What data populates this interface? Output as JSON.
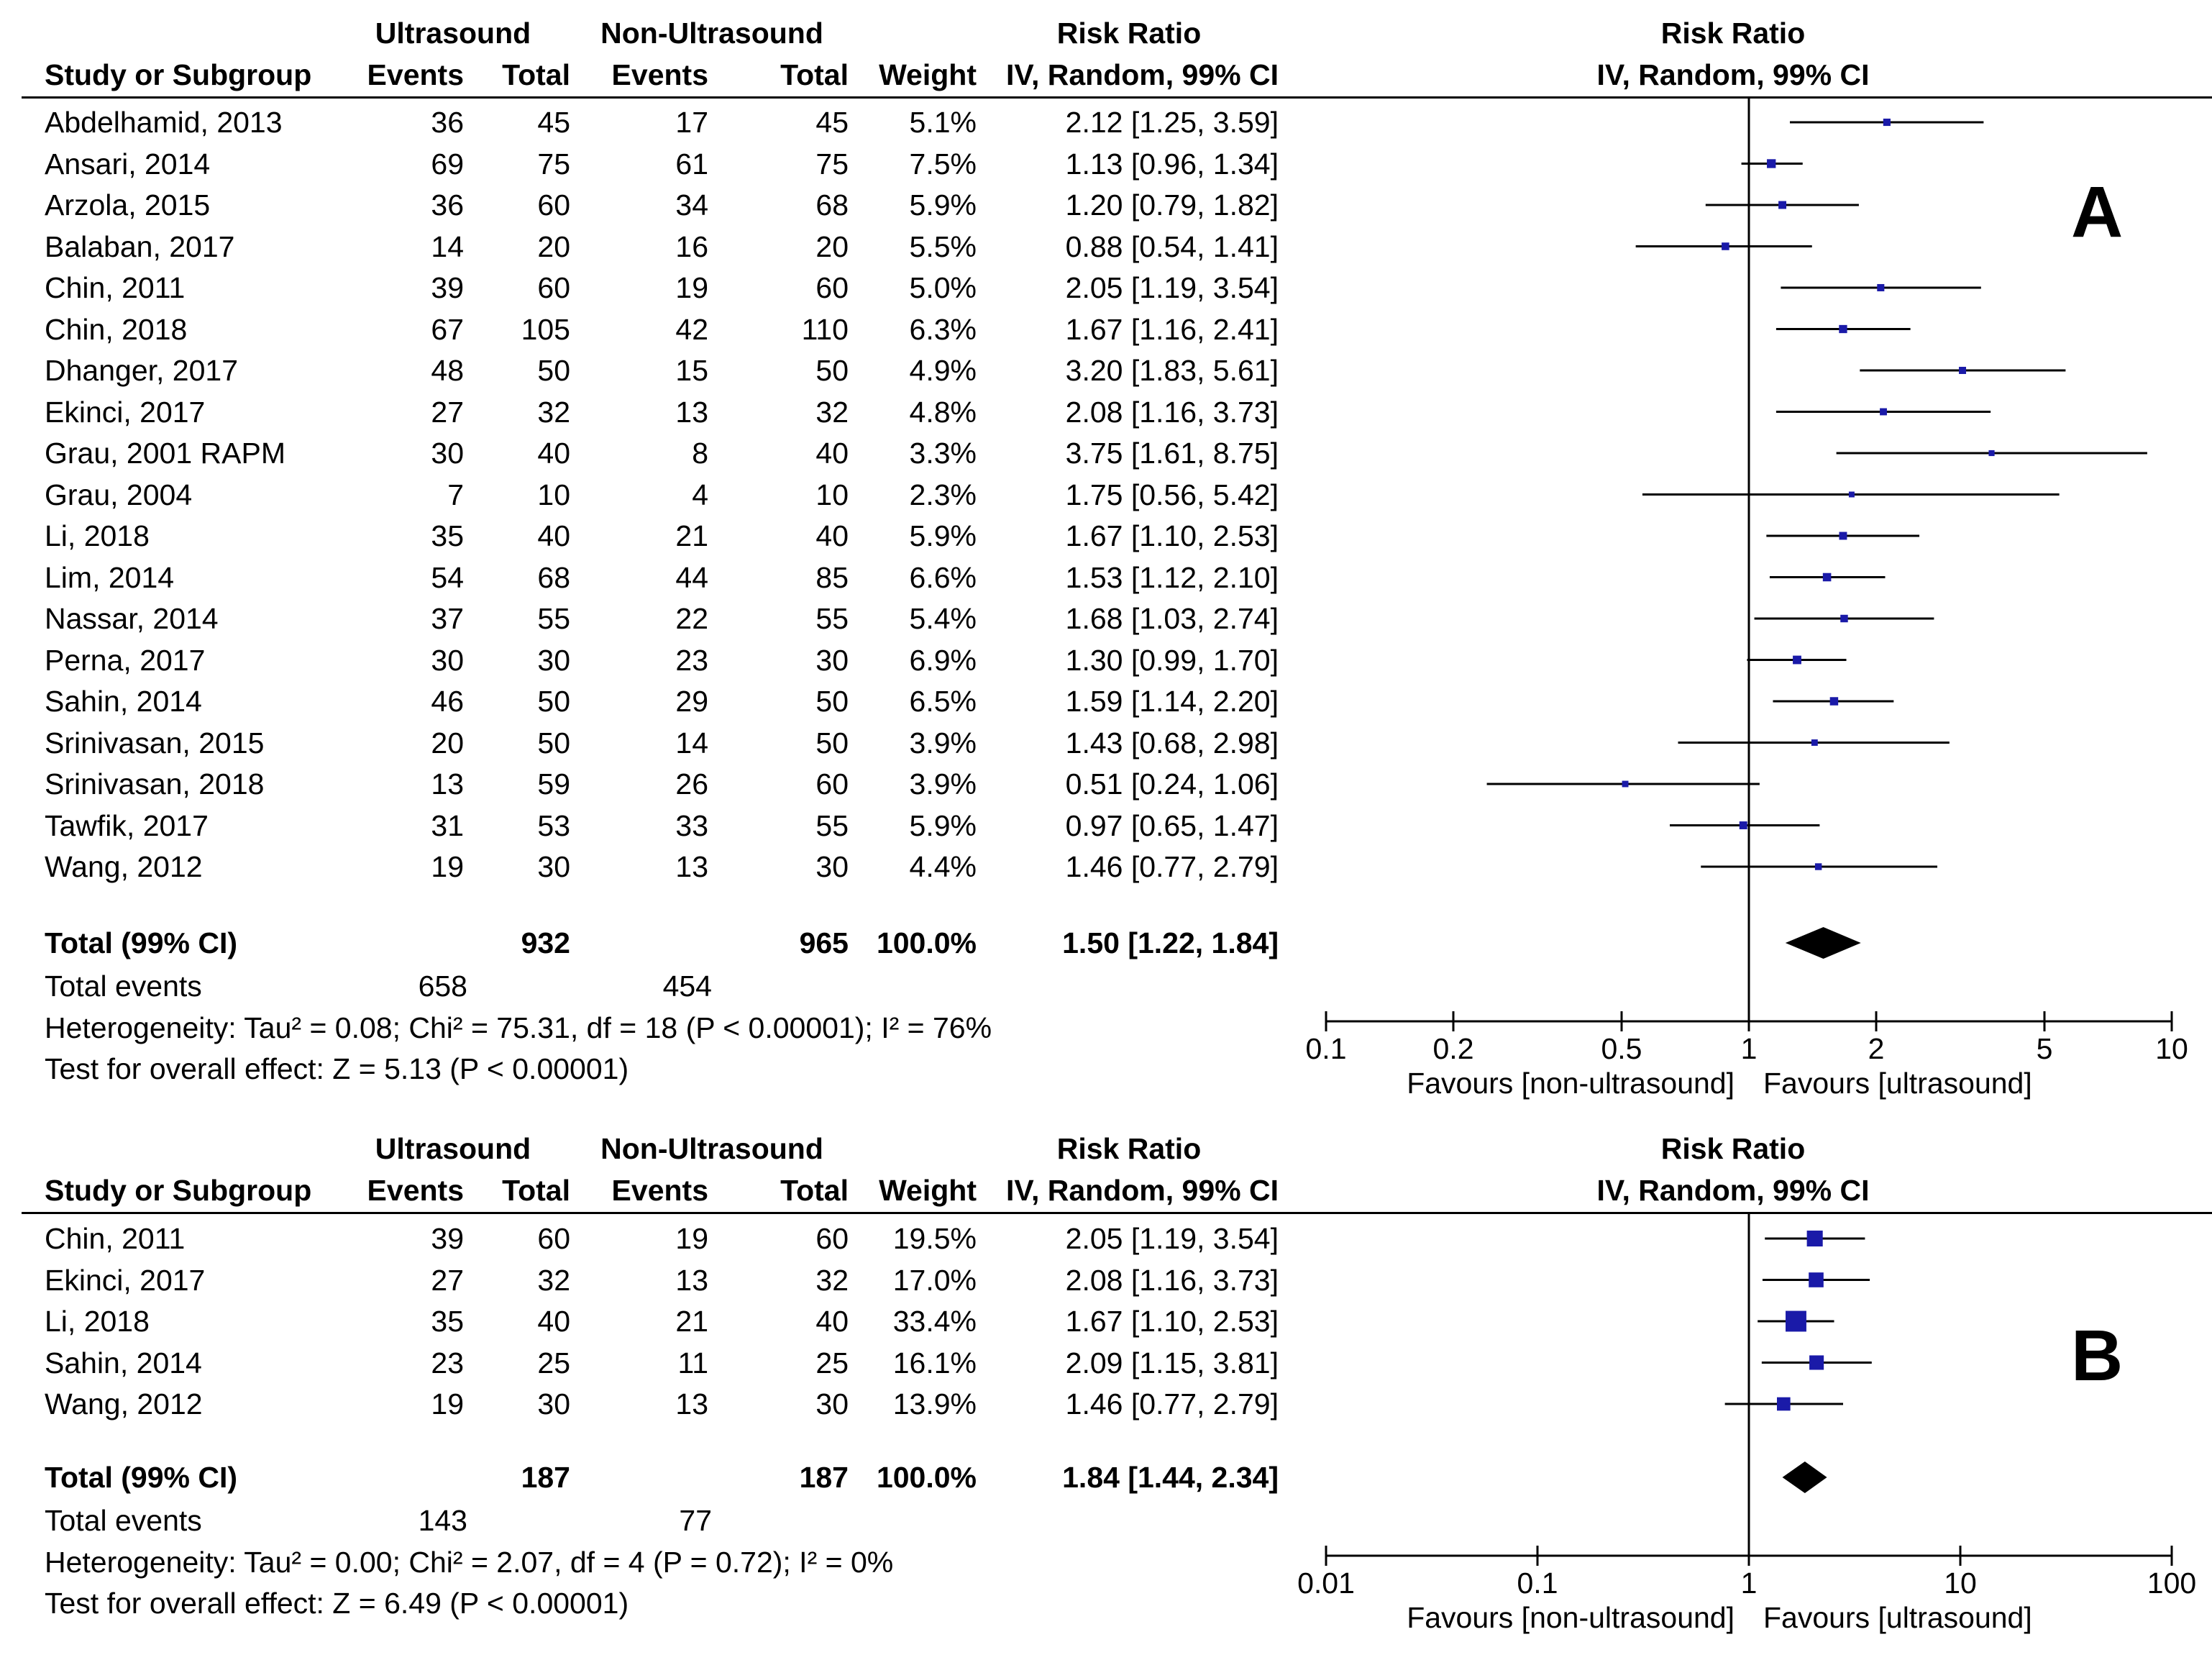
{
  "chart_data": [
    {
      "type": "forest",
      "panel_label": "A",
      "header": {
        "group1": "Ultrasound",
        "group2": "Non-Ultrasound",
        "estimate": "Risk Ratio",
        "plot_title": "Risk Ratio",
        "columns": [
          "Study or Subgroup",
          "Events",
          "Total",
          "Events",
          "Total",
          "Weight",
          "IV, Random, 99% CI"
        ],
        "plot_subtitle": "IV, Random, 99% CI"
      },
      "studies": [
        {
          "name": "Abdelhamid, 2013",
          "e1": "36",
          "n1": "45",
          "e2": "17",
          "n2": "45",
          "weight": "5.1%",
          "ci_text": "2.12 [1.25, 3.59]",
          "rr": 2.12,
          "lo": 1.25,
          "hi": 3.59
        },
        {
          "name": "Ansari, 2014",
          "e1": "69",
          "n1": "75",
          "e2": "61",
          "n2": "75",
          "weight": "7.5%",
          "ci_text": "1.13 [0.96, 1.34]",
          "rr": 1.13,
          "lo": 0.96,
          "hi": 1.34
        },
        {
          "name": "Arzola, 2015",
          "e1": "36",
          "n1": "60",
          "e2": "34",
          "n2": "68",
          "weight": "5.9%",
          "ci_text": "1.20 [0.79, 1.82]",
          "rr": 1.2,
          "lo": 0.79,
          "hi": 1.82
        },
        {
          "name": "Balaban, 2017",
          "e1": "14",
          "n1": "20",
          "e2": "16",
          "n2": "20",
          "weight": "5.5%",
          "ci_text": "0.88 [0.54, 1.41]",
          "rr": 0.88,
          "lo": 0.54,
          "hi": 1.41
        },
        {
          "name": "Chin, 2011",
          "e1": "39",
          "n1": "60",
          "e2": "19",
          "n2": "60",
          "weight": "5.0%",
          "ci_text": "2.05 [1.19, 3.54]",
          "rr": 2.05,
          "lo": 1.19,
          "hi": 3.54
        },
        {
          "name": "Chin, 2018",
          "e1": "67",
          "n1": "105",
          "e2": "42",
          "n2": "110",
          "weight": "6.3%",
          "ci_text": "1.67 [1.16, 2.41]",
          "rr": 1.67,
          "lo": 1.16,
          "hi": 2.41
        },
        {
          "name": "Dhanger, 2017",
          "e1": "48",
          "n1": "50",
          "e2": "15",
          "n2": "50",
          "weight": "4.9%",
          "ci_text": "3.20 [1.83, 5.61]",
          "rr": 3.2,
          "lo": 1.83,
          "hi": 5.61
        },
        {
          "name": "Ekinci, 2017",
          "e1": "27",
          "n1": "32",
          "e2": "13",
          "n2": "32",
          "weight": "4.8%",
          "ci_text": "2.08 [1.16, 3.73]",
          "rr": 2.08,
          "lo": 1.16,
          "hi": 3.73
        },
        {
          "name": "Grau, 2001 RAPM",
          "e1": "30",
          "n1": "40",
          "e2": "8",
          "n2": "40",
          "weight": "3.3%",
          "ci_text": "3.75 [1.61, 8.75]",
          "rr": 3.75,
          "lo": 1.61,
          "hi": 8.75
        },
        {
          "name": "Grau, 2004",
          "e1": "7",
          "n1": "10",
          "e2": "4",
          "n2": "10",
          "weight": "2.3%",
          "ci_text": "1.75 [0.56, 5.42]",
          "rr": 1.75,
          "lo": 0.56,
          "hi": 5.42
        },
        {
          "name": "Li, 2018",
          "e1": "35",
          "n1": "40",
          "e2": "21",
          "n2": "40",
          "weight": "5.9%",
          "ci_text": "1.67 [1.10, 2.53]",
          "rr": 1.67,
          "lo": 1.1,
          "hi": 2.53
        },
        {
          "name": "Lim, 2014",
          "e1": "54",
          "n1": "68",
          "e2": "44",
          "n2": "85",
          "weight": "6.6%",
          "ci_text": "1.53 [1.12, 2.10]",
          "rr": 1.53,
          "lo": 1.12,
          "hi": 2.1
        },
        {
          "name": "Nassar, 2014",
          "e1": "37",
          "n1": "55",
          "e2": "22",
          "n2": "55",
          "weight": "5.4%",
          "ci_text": "1.68 [1.03, 2.74]",
          "rr": 1.68,
          "lo": 1.03,
          "hi": 2.74
        },
        {
          "name": "Perna, 2017",
          "e1": "30",
          "n1": "30",
          "e2": "23",
          "n2": "30",
          "weight": "6.9%",
          "ci_text": "1.30 [0.99, 1.70]",
          "rr": 1.3,
          "lo": 0.99,
          "hi": 1.7
        },
        {
          "name": "Sahin, 2014",
          "e1": "46",
          "n1": "50",
          "e2": "29",
          "n2": "50",
          "weight": "6.5%",
          "ci_text": "1.59 [1.14, 2.20]",
          "rr": 1.59,
          "lo": 1.14,
          "hi": 2.2
        },
        {
          "name": "Srinivasan, 2015",
          "e1": "20",
          "n1": "50",
          "e2": "14",
          "n2": "50",
          "weight": "3.9%",
          "ci_text": "1.43 [0.68, 2.98]",
          "rr": 1.43,
          "lo": 0.68,
          "hi": 2.98
        },
        {
          "name": "Srinivasan, 2018",
          "e1": "13",
          "n1": "59",
          "e2": "26",
          "n2": "60",
          "weight": "3.9%",
          "ci_text": "0.51 [0.24, 1.06]",
          "rr": 0.51,
          "lo": 0.24,
          "hi": 1.06
        },
        {
          "name": "Tawfik, 2017",
          "e1": "31",
          "n1": "53",
          "e2": "33",
          "n2": "55",
          "weight": "5.9%",
          "ci_text": "0.97 [0.65, 1.47]",
          "rr": 0.97,
          "lo": 0.65,
          "hi": 1.47
        },
        {
          "name": "Wang, 2012",
          "e1": "19",
          "n1": "30",
          "e2": "13",
          "n2": "30",
          "weight": "4.4%",
          "ci_text": "1.46 [0.77, 2.79]",
          "rr": 1.46,
          "lo": 0.77,
          "hi": 2.79
        }
      ],
      "total": {
        "label": "Total (99% CI)",
        "n1": "932",
        "n2": "965",
        "weight": "100.0%",
        "ci_text": "1.50 [1.22, 1.84]",
        "rr": 1.5,
        "lo": 1.22,
        "hi": 1.84
      },
      "total_events": {
        "label": "Total events",
        "e1": "658",
        "e2": "454"
      },
      "heterogeneity": "Heterogeneity: Tau² = 0.08; Chi² = 75.31, df = 18 (P < 0.00001); I² = 76%",
      "overall_effect": "Test for overall effect: Z = 5.13 (P < 0.00001)",
      "axis": {
        "scale": "log",
        "xlim": [
          0.1,
          10
        ],
        "ticks": [
          0.1,
          0.2,
          0.5,
          1,
          2,
          5,
          10
        ],
        "tick_labels": [
          "0.1",
          "0.2",
          "0.5",
          "1",
          "2",
          "5",
          "10"
        ],
        "left_label": "Favours [non-ultrasound]",
        "right_label": "Favours [ultrasound]"
      },
      "marker_color": "#1a1aa8"
    },
    {
      "type": "forest",
      "panel_label": "B",
      "header": {
        "group1": "Ultrasound",
        "group2": "Non-Ultrasound",
        "estimate": "Risk Ratio",
        "plot_title": "Risk Ratio",
        "columns": [
          "Study or Subgroup",
          "Events",
          "Total",
          "Events",
          "Total",
          "Weight",
          "IV, Random, 99% CI"
        ],
        "plot_subtitle": "IV, Random, 99% CI"
      },
      "studies": [
        {
          "name": "Chin, 2011",
          "e1": "39",
          "n1": "60",
          "e2": "19",
          "n2": "60",
          "weight": "19.5%",
          "ci_text": "2.05 [1.19, 3.54]",
          "rr": 2.05,
          "lo": 1.19,
          "hi": 3.54
        },
        {
          "name": "Ekinci, 2017",
          "e1": "27",
          "n1": "32",
          "e2": "13",
          "n2": "32",
          "weight": "17.0%",
          "ci_text": "2.08 [1.16, 3.73]",
          "rr": 2.08,
          "lo": 1.16,
          "hi": 3.73
        },
        {
          "name": "Li, 2018",
          "e1": "35",
          "n1": "40",
          "e2": "21",
          "n2": "40",
          "weight": "33.4%",
          "ci_text": "1.67 [1.10, 2.53]",
          "rr": 1.67,
          "lo": 1.1,
          "hi": 2.53
        },
        {
          "name": "Sahin, 2014",
          "e1": "23",
          "n1": "25",
          "e2": "11",
          "n2": "25",
          "weight": "16.1%",
          "ci_text": "2.09 [1.15, 3.81]",
          "rr": 2.09,
          "lo": 1.15,
          "hi": 3.81
        },
        {
          "name": "Wang, 2012",
          "e1": "19",
          "n1": "30",
          "e2": "13",
          "n2": "30",
          "weight": "13.9%",
          "ci_text": "1.46 [0.77, 2.79]",
          "rr": 1.46,
          "lo": 0.77,
          "hi": 2.79
        }
      ],
      "total": {
        "label": "Total (99% CI)",
        "n1": "187",
        "n2": "187",
        "weight": "100.0%",
        "ci_text": "1.84 [1.44, 2.34]",
        "rr": 1.84,
        "lo": 1.44,
        "hi": 2.34
      },
      "total_events": {
        "label": "Total events",
        "e1": "143",
        "e2": "77"
      },
      "heterogeneity": "Heterogeneity: Tau² = 0.00; Chi² = 2.07, df = 4 (P = 0.72); I² = 0%",
      "overall_effect": "Test for overall effect: Z = 6.49 (P < 0.00001)",
      "axis": {
        "scale": "log",
        "xlim": [
          0.01,
          100
        ],
        "ticks": [
          0.01,
          0.1,
          1,
          10,
          100
        ],
        "tick_labels": [
          "0.01",
          "0.1",
          "1",
          "10",
          "100"
        ],
        "left_label": "Favours [non-ultrasound]",
        "right_label": "Favours [ultrasound]"
      },
      "marker_color": "#1a1aa8"
    }
  ]
}
